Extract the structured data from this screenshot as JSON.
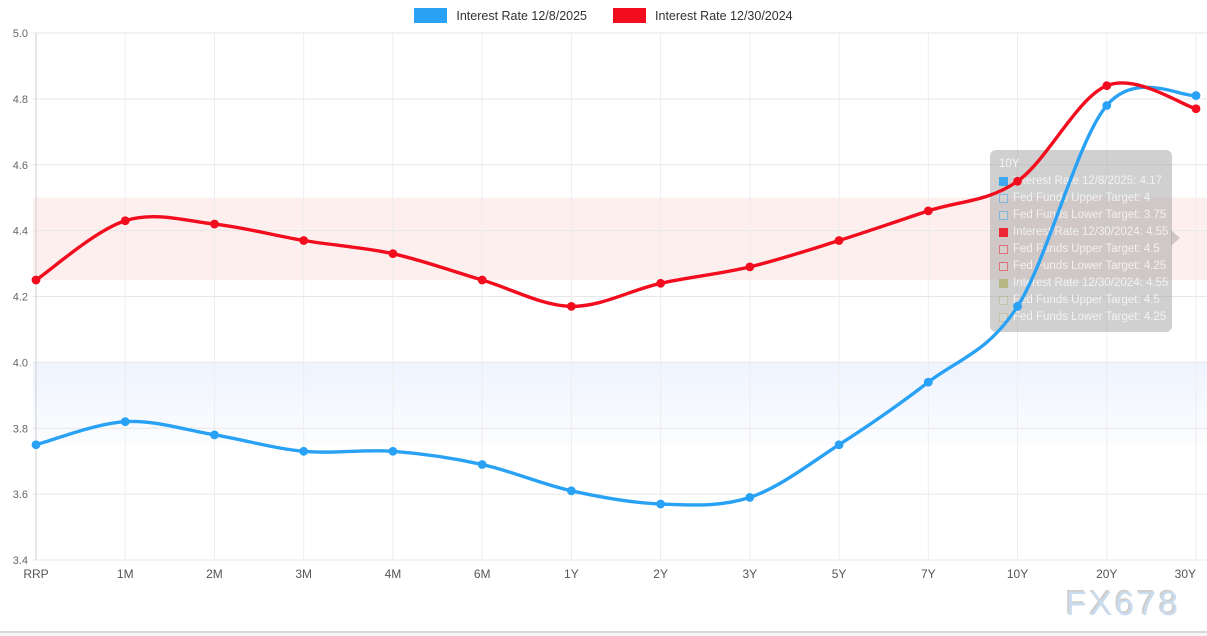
{
  "legend": {
    "items": [
      {
        "label": "Interest Rate 12/8/2025",
        "color": "#29a2f5"
      },
      {
        "label": "Interest Rate 12/30/2024",
        "color": "#f20d1e"
      }
    ]
  },
  "chart_data": {
    "type": "line",
    "categories": [
      "RRP",
      "1M",
      "2M",
      "3M",
      "4M",
      "6M",
      "1Y",
      "2Y",
      "3Y",
      "5Y",
      "7Y",
      "10Y",
      "20Y",
      "30Y"
    ],
    "series": [
      {
        "name": "Interest Rate 12/8/2025",
        "color": "#29a2f5",
        "values": [
          3.75,
          3.82,
          3.78,
          3.73,
          3.73,
          3.69,
          3.61,
          3.57,
          3.59,
          3.75,
          3.94,
          4.17,
          4.78,
          4.81
        ]
      },
      {
        "name": "Interest Rate 12/30/2024",
        "color": "#f20d1e",
        "values": [
          4.25,
          4.43,
          4.42,
          4.37,
          4.33,
          4.25,
          4.17,
          4.24,
          4.29,
          4.37,
          4.46,
          4.55,
          4.84,
          4.77
        ]
      }
    ],
    "ylim": [
      3.4,
      5.0
    ],
    "ytick_step": 0.2,
    "yticks": [
      "5.0",
      "4.8",
      "4.6",
      "4.4",
      "4.2",
      "4.0",
      "3.8",
      "3.6",
      "3.4"
    ],
    "grid": true,
    "legend_position": "top-center",
    "bands": [
      {
        "label": "Fed Funds Target Range 12/30/2024",
        "from": 4.25,
        "to": 4.5,
        "color_top": "rgba(235,72,50,0.085)",
        "color_bottom": "rgba(235,72,50,0.085)"
      },
      {
        "label": "Fed Funds Target Range 12/8/2025",
        "from": 3.75,
        "to": 4.0,
        "color_top": "rgba(90,140,240,0.10)",
        "color_bottom": "rgba(90,140,240,0.02)"
      }
    ]
  },
  "tooltip": {
    "title": "10Y",
    "rows": [
      {
        "label": "Interest Rate 12/8/2025",
        "value": "4.17",
        "swatch": "#29a2f5",
        "filled": true
      },
      {
        "label": "Fed Funds Upper Target",
        "value": "4",
        "swatch": "#29a2f5",
        "filled": false
      },
      {
        "label": "Fed Funds Lower Target",
        "value": "3.75",
        "swatch": "#29a2f5",
        "filled": false
      },
      {
        "label": "Interest Rate 12/30/2024",
        "value": "4.55",
        "swatch": "#f20d1e",
        "filled": true
      },
      {
        "label": "Fed Funds Upper Target",
        "value": "4.5",
        "swatch": "#f20d1e",
        "filled": false
      },
      {
        "label": "Fed Funds Lower Target",
        "value": "4.25",
        "swatch": "#f20d1e",
        "filled": false
      },
      {
        "label": "Interest Rate 12/30/2024",
        "value": "4.55",
        "swatch": "#b3b377",
        "filled": true
      },
      {
        "label": "Fed Funds Upper Target",
        "value": "4.5",
        "swatch": "#b3b377",
        "filled": false
      },
      {
        "label": "Fed Funds Lower Target",
        "value": "4.25",
        "swatch": "#b3b377",
        "filled": false
      }
    ]
  },
  "watermark": "FX678"
}
